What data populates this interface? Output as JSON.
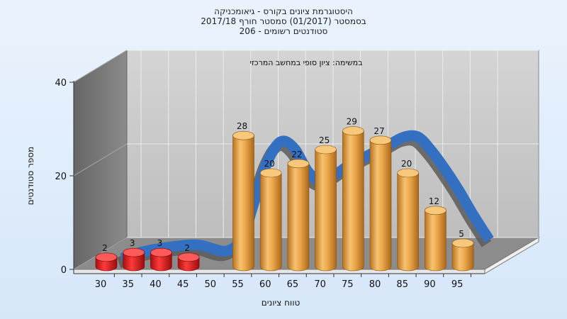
{
  "chart_data": {
    "type": "bar",
    "title_lines": [
      "היסטוגרמת ציונים בקורס - גיאומכניקה",
      "בסמסטר (01/2017) סמסטר חורף 2017/18",
      "סטודנטים רשומים - 206"
    ],
    "subtitle": "במשימה: ציון סופי במחשב המרכזי",
    "xlabel": "טווח ציונים",
    "ylabel": "מספר סטודנטים",
    "categories": [
      "30",
      "35",
      "40",
      "45",
      "50",
      "55",
      "60",
      "65",
      "70",
      "75",
      "80",
      "85",
      "90",
      "95"
    ],
    "y_ticks": [
      0,
      20,
      40
    ],
    "ylim": [
      0,
      40
    ],
    "grid": true,
    "bars": [
      {
        "x": 30,
        "value": 2,
        "color": "red"
      },
      {
        "x": 35,
        "value": 3,
        "color": "red"
      },
      {
        "x": 40,
        "value": 3,
        "color": "red"
      },
      {
        "x": 45,
        "value": 2,
        "color": "red"
      },
      {
        "x": 55,
        "value": 28,
        "color": "orange"
      },
      {
        "x": 60,
        "value": 20,
        "color": "orange"
      },
      {
        "x": 65,
        "value": 22,
        "color": "orange"
      },
      {
        "x": 70,
        "value": 25,
        "color": "orange"
      },
      {
        "x": 75,
        "value": 29,
        "color": "orange"
      },
      {
        "x": 80,
        "value": 27,
        "color": "orange"
      },
      {
        "x": 85,
        "value": 20,
        "color": "orange"
      },
      {
        "x": 90,
        "value": 12,
        "color": "orange"
      },
      {
        "x": 95,
        "value": 5,
        "color": "orange"
      }
    ],
    "trend_curve": {
      "x": [
        31,
        35,
        40,
        45,
        50,
        53,
        55,
        57.5,
        60,
        62.5,
        65,
        67.5,
        70,
        72.5,
        75,
        77.5,
        80,
        82.5,
        85,
        87.5,
        90,
        92.5,
        95,
        98
      ],
      "y": [
        0.5,
        2,
        3,
        3.4,
        2.1,
        5,
        12,
        21,
        25.5,
        24,
        19,
        17,
        18.5,
        20.5,
        22,
        23.5,
        25,
        26.5,
        26.5,
        23.5,
        19.5,
        15,
        10,
        4.5
      ]
    },
    "colors": {
      "bar_orange": "#e9a54a",
      "bar_red": "#e01e1e",
      "curve": "#3470c2",
      "background": "#dbe9f8"
    }
  }
}
